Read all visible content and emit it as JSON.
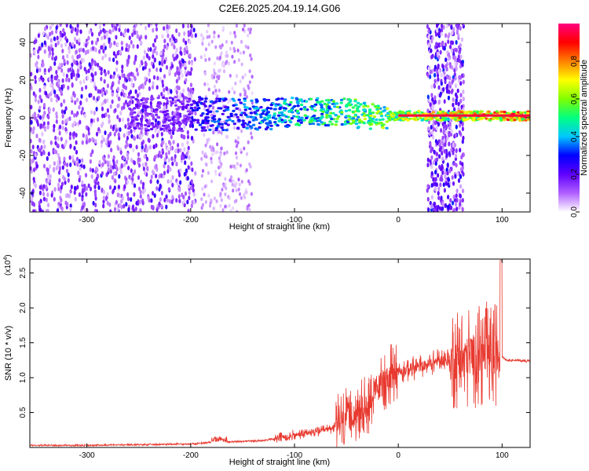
{
  "title": "C2E6.2025.204.19.14.G06",
  "chart_data": [
    {
      "type": "heatmap",
      "xlabel": "Height of straight line (km)",
      "ylabel": "Frequency (Hz)",
      "xlim": [
        -355,
        127
      ],
      "ylim": [
        -50,
        50
      ],
      "xticks": [
        -300,
        -200,
        -100,
        0,
        100
      ],
      "yticks": [
        -40,
        -20,
        0,
        20,
        40
      ],
      "grid": false,
      "colorbar": {
        "label": "Normalized spectral amplitude",
        "range": [
          0,
          1
        ],
        "ticks": [
          0.0,
          0.2,
          0.4,
          0.6,
          0.8
        ],
        "tick_labels": [
          "0.0",
          "0.2",
          "0.4",
          "0.6",
          "0.8"
        ],
        "colormap": [
          "#ffffff",
          "#b060ff",
          "#6000ff",
          "#0000ff",
          "#00c8ff",
          "#00ff80",
          "#80ff00",
          "#ffff00",
          "#ff8000",
          "#ff0000",
          "#ff0080"
        ]
      },
      "features": [
        {
          "name": "broadband noise",
          "x_range": [
            -355,
            -195
          ],
          "freq_range": [
            -50,
            50
          ],
          "amplitude": 0.15
        },
        {
          "name": "faint noise",
          "x_range": [
            -190,
            -140
          ],
          "freq_range": [
            -50,
            50
          ],
          "amplitude": 0.08
        },
        {
          "name": "carrier band",
          "x_range": [
            -200,
            127
          ],
          "freq_center": 0,
          "amplitude_start": 0.3,
          "amplitude_end": 0.95
        },
        {
          "name": "broadband burst",
          "x_range": [
            28,
            63
          ],
          "freq_range": [
            -50,
            50
          ],
          "amplitude": 0.2
        }
      ]
    },
    {
      "type": "line",
      "xlabel": "Height of straight line (km)",
      "ylabel": "SNR (10 * v/v)",
      "y_multiplier": "(x10",
      "y_multiplier_exp": "4",
      "y_multiplier_close": ")",
      "xlim": [
        -355,
        127
      ],
      "ylim": [
        0,
        2.7
      ],
      "xticks": [
        -300,
        -200,
        -100,
        0,
        100
      ],
      "yticks": [
        0.5,
        1.0,
        1.5,
        2.0,
        2.5
      ],
      "ytick_labels": [
        "0.5",
        "1.0",
        "1.5",
        "2.0",
        "2.5"
      ],
      "color": "#e8392f",
      "grid": false,
      "x": [
        -355,
        -300,
        -250,
        -200,
        -175,
        -160,
        -130,
        -110,
        -90,
        -80,
        -70,
        -60,
        -55,
        -50,
        -45,
        -40,
        -35,
        -30,
        -25,
        -20,
        -15,
        -10,
        -5,
        0,
        10,
        20,
        30,
        40,
        50,
        60,
        65,
        70,
        75,
        80,
        85,
        90,
        95,
        100,
        105,
        110,
        127
      ],
      "y": [
        0.03,
        0.03,
        0.04,
        0.05,
        0.08,
        0.08,
        0.1,
        0.15,
        0.2,
        0.22,
        0.25,
        0.3,
        0.35,
        0.45,
        0.48,
        0.5,
        0.55,
        0.6,
        0.75,
        0.85,
        0.95,
        1.0,
        1.05,
        1.1,
        1.12,
        1.15,
        1.2,
        1.25,
        1.25,
        1.3,
        1.25,
        1.35,
        1.3,
        1.3,
        1.35,
        1.3,
        1.35,
        1.3,
        1.25,
        1.25,
        1.24
      ]
    }
  ]
}
